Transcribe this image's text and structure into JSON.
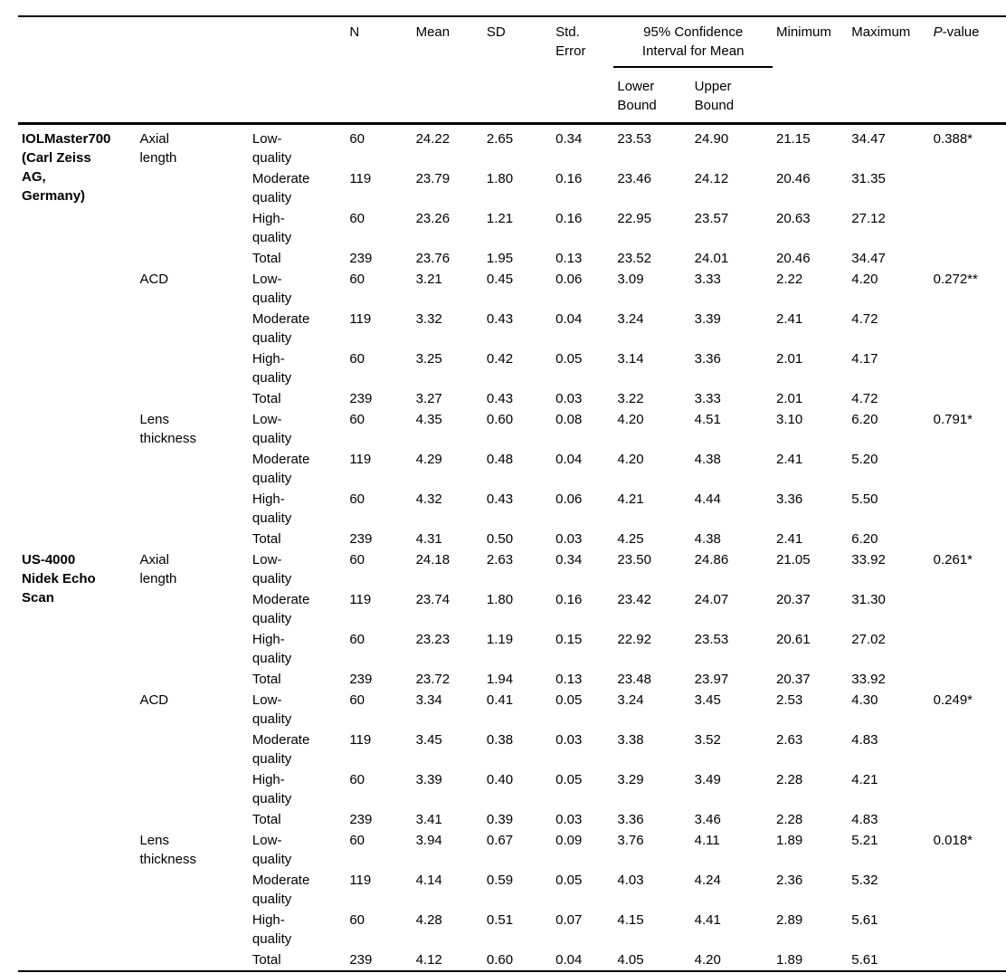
{
  "table": {
    "header": {
      "n": "N",
      "mean": "Mean",
      "sd": "SD",
      "std_error": "Std.\nError",
      "ci": "95% Confidence\nInterval for Mean",
      "lower": "Lower\nBound",
      "upper": "Upper\nBound",
      "minimum": "Minimum",
      "maximum": "Maximum",
      "p": {
        "italic": "P",
        "rest": "-value"
      }
    },
    "groups": [
      {
        "device": "IOLMaster700\n(Carl Zeiss\nAG,\nGermany)",
        "measurements": [
          {
            "name": "Axial\nlength",
            "p_value": "0.388*",
            "rows": [
              {
                "quality": "Low-\nquality",
                "n": "60",
                "mean": "24.22",
                "sd": "2.65",
                "se": "0.34",
                "lower": "23.53",
                "upper": "24.90",
                "min": "21.15",
                "max": "34.47"
              },
              {
                "quality": "Moderate\nquality",
                "n": "119",
                "mean": "23.79",
                "sd": "1.80",
                "se": "0.16",
                "lower": "23.46",
                "upper": "24.12",
                "min": "20.46",
                "max": "31.35"
              },
              {
                "quality": "High-\nquality",
                "n": "60",
                "mean": "23.26",
                "sd": "1.21",
                "se": "0.16",
                "lower": "22.95",
                "upper": "23.57",
                "min": "20.63",
                "max": "27.12"
              },
              {
                "quality": "Total",
                "n": "239",
                "mean": "23.76",
                "sd": "1.95",
                "se": "0.13",
                "lower": "23.52",
                "upper": "24.01",
                "min": "20.46",
                "max": "34.47"
              }
            ]
          },
          {
            "name": "ACD",
            "p_value": "0.272**",
            "rows": [
              {
                "quality": "Low-\nquality",
                "n": "60",
                "mean": "3.21",
                "sd": "0.45",
                "se": "0.06",
                "lower": "3.09",
                "upper": "3.33",
                "min": "2.22",
                "max": "4.20"
              },
              {
                "quality": "Moderate\nquality",
                "n": "119",
                "mean": "3.32",
                "sd": "0.43",
                "se": "0.04",
                "lower": "3.24",
                "upper": "3.39",
                "min": "2.41",
                "max": "4.72"
              },
              {
                "quality": "High-\nquality",
                "n": "60",
                "mean": "3.25",
                "sd": "0.42",
                "se": "0.05",
                "lower": "3.14",
                "upper": "3.36",
                "min": "2.01",
                "max": "4.17"
              },
              {
                "quality": "Total",
                "n": "239",
                "mean": "3.27",
                "sd": "0.43",
                "se": "0.03",
                "lower": "3.22",
                "upper": "3.33",
                "min": "2.01",
                "max": "4.72"
              }
            ]
          },
          {
            "name": "Lens\nthickness",
            "p_value": "0.791*",
            "rows": [
              {
                "quality": "Low-\nquality",
                "n": "60",
                "mean": "4.35",
                "sd": "0.60",
                "se": "0.08",
                "lower": "4.20",
                "upper": "4.51",
                "min": "3.10",
                "max": "6.20"
              },
              {
                "quality": "Moderate\nquality",
                "n": "119",
                "mean": "4.29",
                "sd": "0.48",
                "se": "0.04",
                "lower": "4.20",
                "upper": "4.38",
                "min": "2.41",
                "max": "5.20"
              },
              {
                "quality": "High-\nquality",
                "n": "60",
                "mean": "4.32",
                "sd": "0.43",
                "se": "0.06",
                "lower": "4.21",
                "upper": "4.44",
                "min": "3.36",
                "max": "5.50"
              },
              {
                "quality": "Total",
                "n": "239",
                "mean": "4.31",
                "sd": "0.50",
                "se": "0.03",
                "lower": "4.25",
                "upper": "4.38",
                "min": "2.41",
                "max": "6.20"
              }
            ]
          }
        ]
      },
      {
        "device": "US-4000\nNidek Echo\nScan",
        "measurements": [
          {
            "name": "Axial\nlength",
            "p_value": "0.261*",
            "rows": [
              {
                "quality": "Low-\nquality",
                "n": "60",
                "mean": "24.18",
                "sd": "2.63",
                "se": "0.34",
                "lower": "23.50",
                "upper": "24.86",
                "min": "21.05",
                "max": "33.92"
              },
              {
                "quality": "Moderate\nquality",
                "n": "119",
                "mean": "23.74",
                "sd": "1.80",
                "se": "0.16",
                "lower": "23.42",
                "upper": "24.07",
                "min": "20.37",
                "max": "31.30"
              },
              {
                "quality": "High-\nquality",
                "n": "60",
                "mean": "23.23",
                "sd": "1.19",
                "se": "0.15",
                "lower": "22.92",
                "upper": "23.53",
                "min": "20.61",
                "max": "27.02"
              },
              {
                "quality": "Total",
                "n": "239",
                "mean": "23.72",
                "sd": "1.94",
                "se": "0.13",
                "lower": "23.48",
                "upper": "23.97",
                "min": "20.37",
                "max": "33.92"
              }
            ]
          },
          {
            "name": "ACD",
            "p_value": "0.249*",
            "rows": [
              {
                "quality": "Low-\nquality",
                "n": "60",
                "mean": "3.34",
                "sd": "0.41",
                "se": "0.05",
                "lower": "3.24",
                "upper": "3.45",
                "min": "2.53",
                "max": "4.30"
              },
              {
                "quality": "Moderate\nquality",
                "n": "119",
                "mean": "3.45",
                "sd": "0.38",
                "se": "0.03",
                "lower": "3.38",
                "upper": "3.52",
                "min": "2.63",
                "max": "4.83"
              },
              {
                "quality": "High-\nquality",
                "n": "60",
                "mean": "3.39",
                "sd": "0.40",
                "se": "0.05",
                "lower": "3.29",
                "upper": "3.49",
                "min": "2.28",
                "max": "4.21"
              },
              {
                "quality": "Total",
                "n": "239",
                "mean": "3.41",
                "sd": "0.39",
                "se": "0.03",
                "lower": "3.36",
                "upper": "3.46",
                "min": "2.28",
                "max": "4.83"
              }
            ]
          },
          {
            "name": "Lens\nthickness",
            "p_value": "0.018*",
            "rows": [
              {
                "quality": "Low-\nquality",
                "n": "60",
                "mean": "3.94",
                "sd": "0.67",
                "se": "0.09",
                "lower": "3.76",
                "upper": "4.11",
                "min": "1.89",
                "max": "5.21"
              },
              {
                "quality": "Moderate\nquality",
                "n": "119",
                "mean": "4.14",
                "sd": "0.59",
                "se": "0.05",
                "lower": "4.03",
                "upper": "4.24",
                "min": "2.36",
                "max": "5.32"
              },
              {
                "quality": "High-\nquality",
                "n": "60",
                "mean": "4.28",
                "sd": "0.51",
                "se": "0.07",
                "lower": "4.15",
                "upper": "4.41",
                "min": "2.89",
                "max": "5.61"
              },
              {
                "quality": "Total",
                "n": "239",
                "mean": "4.12",
                "sd": "0.60",
                "se": "0.04",
                "lower": "4.05",
                "upper": "4.20",
                "min": "1.89",
                "max": "5.61"
              }
            ]
          }
        ]
      }
    ]
  }
}
